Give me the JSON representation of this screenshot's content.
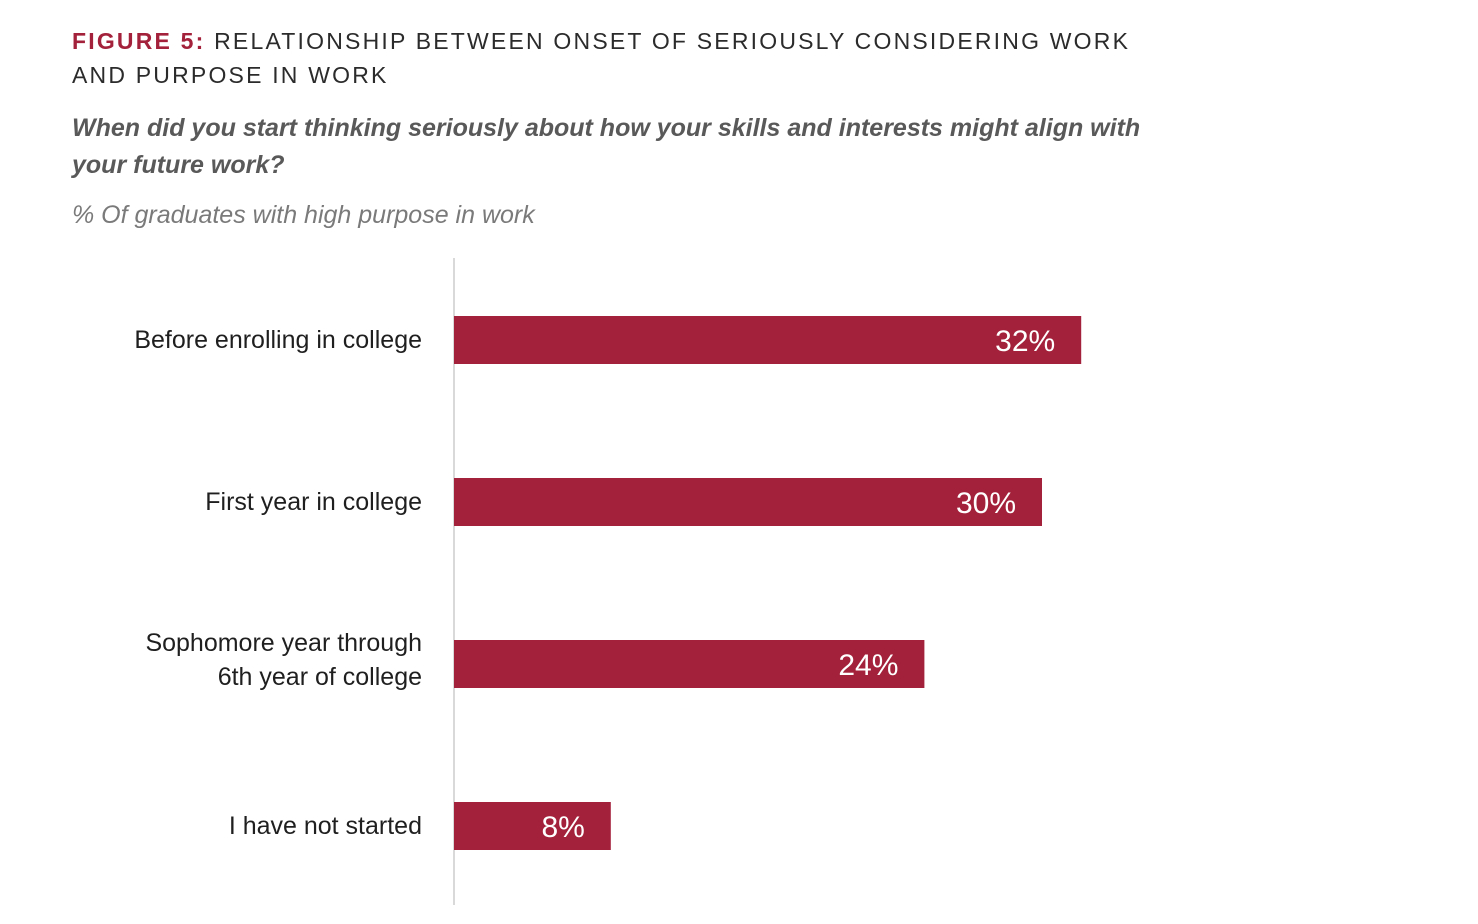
{
  "figure": {
    "label": "FIGURE 5:",
    "title": "RELATIONSHIP BETWEEN ONSET OF SERIOUSLY CONSIDERING WORK AND PURPOSE IN WORK",
    "question": "When did you start thinking seriously about how your skills and interests might align with your future work?",
    "measure": "% Of graduates with high purpose in work"
  },
  "colors": {
    "accent": "#a3213a",
    "bar": "#a3213a",
    "axis": "#d9d9d9"
  },
  "chart_data": {
    "type": "bar",
    "orientation": "horizontal",
    "categories": [
      [
        "Before enrolling in college"
      ],
      [
        "First year in college"
      ],
      [
        "Sophomore year through",
        "6th year of college"
      ],
      [
        "I have not started"
      ]
    ],
    "values": [
      32,
      30,
      24,
      8
    ],
    "value_labels": [
      "32%",
      "30%",
      "24%",
      "8%"
    ],
    "unit": "%",
    "title": "",
    "xlabel": "",
    "ylabel": "",
    "grid": false,
    "legend": "none"
  }
}
